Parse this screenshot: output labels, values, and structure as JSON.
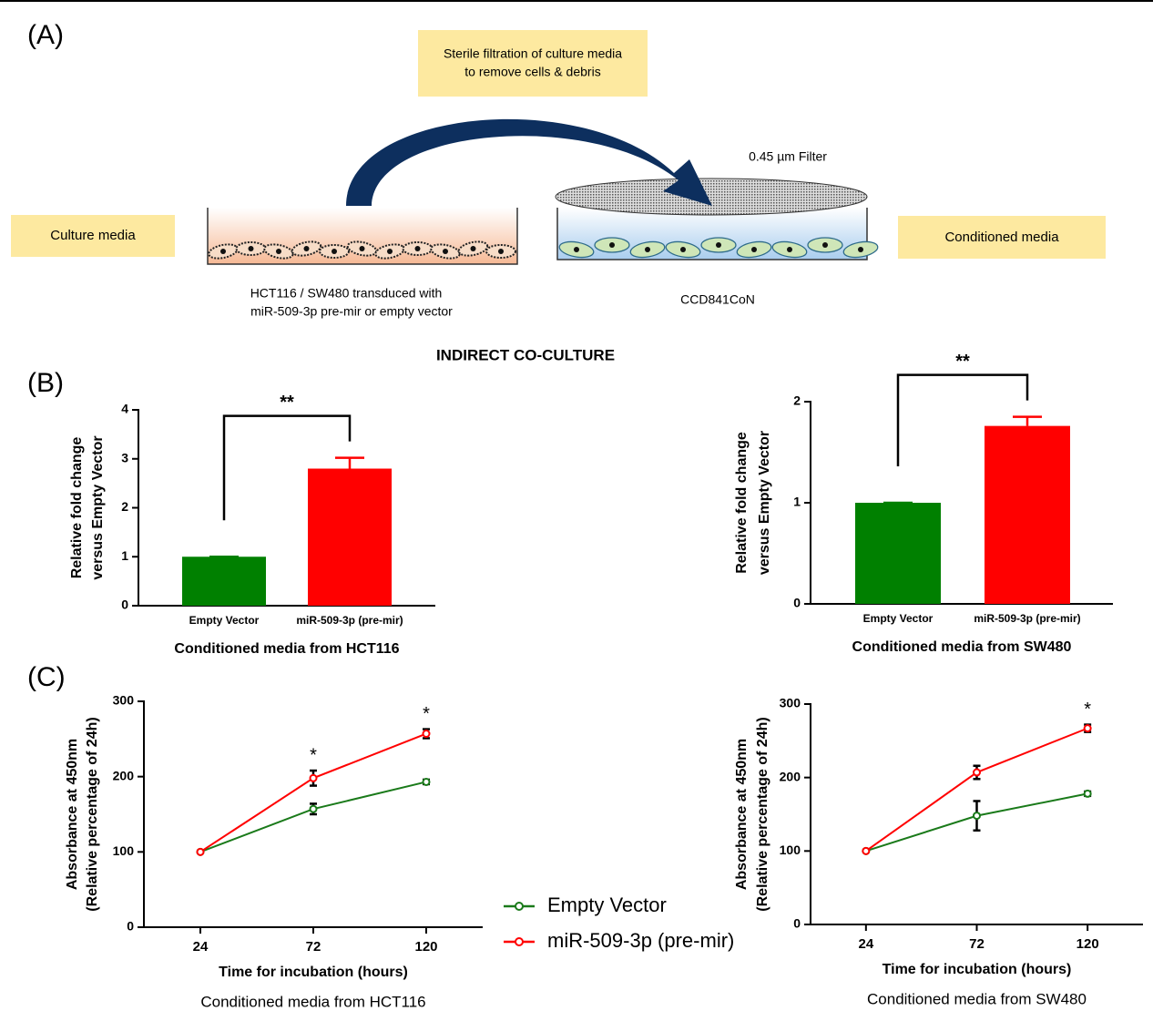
{
  "panel_labels": [
    "(A)",
    "(B)",
    "(C)"
  ],
  "diagram": {
    "filtration": [
      "Sterile filtration of culture media",
      "to remove cells & debris"
    ],
    "filter": "0.45 µm Filter",
    "culture_media": "Culture media",
    "conditioned_media": "Conditioned media",
    "donor": [
      "HCT116 / SW480 transduced with",
      "miR-509-3p pre-mir or empty vector"
    ],
    "recipient": "CCD841CoN",
    "caption": "INDIRECT CO-CULTURE"
  },
  "chart_data": [
    {
      "type": "bar",
      "ylabel": [
        "Relative fold change",
        "versus Empty Vector"
      ],
      "xlabel": "Conditioned media from HCT116",
      "categories": [
        "Empty Vector",
        "miR-509-3p (pre-mir)"
      ],
      "values": [
        1,
        2.8
      ],
      "errors": [
        0,
        0.22
      ],
      "colors": [
        "#008000",
        "#ff0000"
      ],
      "ylim": [
        0,
        4
      ],
      "yticks": [
        0,
        1,
        2,
        3,
        4
      ],
      "significance": "**"
    },
    {
      "type": "bar",
      "ylabel": [
        "Relative fold change",
        "versus Empty Vector"
      ],
      "xlabel": "Conditioned media from SW480",
      "categories": [
        "Empty Vector",
        "miR-509-3p (pre-mir)"
      ],
      "values": [
        1,
        1.76
      ],
      "errors": [
        0,
        0.09
      ],
      "colors": [
        "#008000",
        "#ff0000"
      ],
      "ylim": [
        0,
        2
      ],
      "yticks": [
        0,
        1,
        2
      ],
      "significance": "**"
    },
    {
      "type": "line",
      "ylabel": [
        "Absorbance at 450nm",
        "(Relative percentage of 24h)"
      ],
      "xlabel": "Time for incubation (hours)",
      "subtitle": "Conditioned media from HCT116",
      "x": [
        24,
        72,
        120
      ],
      "xlim": [
        0,
        144
      ],
      "xticks": [
        24,
        72,
        120
      ],
      "ylim": [
        0,
        300
      ],
      "yticks": [
        0,
        100,
        200,
        300
      ],
      "series": [
        {
          "name": "Empty Vector",
          "color": "#1a7a1a",
          "values": [
            100,
            157,
            193
          ],
          "errors": [
            0,
            7,
            3
          ]
        },
        {
          "name": "miR-509-3p (pre-mir)",
          "color": "#ff0000",
          "values": [
            100,
            198,
            257
          ],
          "errors": [
            0,
            10,
            6
          ]
        }
      ],
      "significance": [
        null,
        "*",
        "*"
      ]
    },
    {
      "type": "line",
      "ylabel": [
        "Absorbance at 450nm",
        "(Relative percentage of 24h)"
      ],
      "xlabel": "Time for incubation (hours)",
      "subtitle": "Conditioned media from SW480",
      "x": [
        24,
        72,
        120
      ],
      "xlim": [
        0,
        144
      ],
      "xticks": [
        24,
        72,
        120
      ],
      "ylim": [
        0,
        300
      ],
      "yticks": [
        0,
        100,
        200,
        300
      ],
      "series": [
        {
          "color": "#1a7a1a",
          "values": [
            100,
            148,
            178
          ],
          "errors": [
            0,
            20,
            3
          ]
        },
        {
          "color": "#ff0000",
          "values": [
            100,
            207,
            267
          ],
          "errors": [
            0,
            9,
            5
          ]
        }
      ],
      "significance": [
        null,
        null,
        "*"
      ]
    }
  ]
}
